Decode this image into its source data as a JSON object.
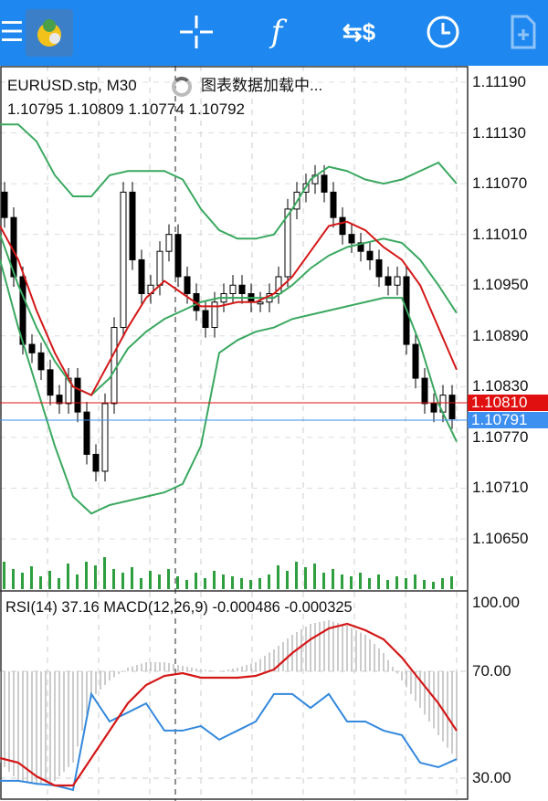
{
  "toolbar": {
    "items": [
      "menu-icon",
      "app-logo",
      "crosshair-icon",
      "indicators-icon",
      "trade-icon",
      "timeframe-clock-icon",
      "new-order-icon"
    ],
    "color": "#1e88f0"
  },
  "chart": {
    "symbol_label": "EURUSD.stp, M30",
    "loading_text": "图表数据加载中...",
    "ohlc_text": "1.10795 1.10809 1.10774 1.10792",
    "price_axis": [
      "1.11190",
      "1.11130",
      "1.11070",
      "1.11010",
      "1.10950",
      "1.10890",
      "1.10830",
      "1.10770",
      "1.10710",
      "1.10650"
    ],
    "bid_tag": "1.10810",
    "ask_tag": "1.10791",
    "bid_color": "#e01010",
    "ask_color": "#3d8ff0",
    "closes": [
      1.1103,
      1.1096,
      1.1088,
      1.1087,
      1.1085,
      1.1082,
      1.1081,
      1.1084,
      1.108,
      1.1075,
      1.1073,
      1.1081,
      1.109,
      1.1106,
      1.1098,
      1.1094,
      1.1095,
      1.1099,
      1.1101,
      1.1096,
      1.1094,
      1.1092,
      1.109,
      1.1093,
      1.1094,
      1.1095,
      1.1094,
      1.1093,
      1.1093,
      1.1094,
      1.1096,
      1.1104,
      1.1106,
      1.1107,
      1.1108,
      1.1106,
      1.1103,
      1.1101,
      1.11,
      1.1099,
      1.1098,
      1.1096,
      1.1095,
      1.1096,
      1.1088,
      1.1084,
      1.1081,
      1.108,
      1.1082,
      1.10792
    ],
    "ma_red": [
      1.1102,
      1.1098,
      1.1092,
      1.1087,
      1.1083,
      1.1082,
      1.1086,
      1.109,
      1.10935,
      1.10955,
      1.1094,
      1.10925,
      1.10925,
      1.1093,
      1.1093,
      1.1094,
      1.1096,
      1.1099,
      1.1102,
      1.11025,
      1.11015,
      1.10995,
      1.1098,
      1.1095,
      1.109,
      1.1085
    ],
    "bb_middle": [
      1.1101,
      1.1095,
      1.109,
      1.1086,
      1.1083,
      1.1082,
      1.1084,
      1.10875,
      1.10895,
      1.1091,
      1.1092,
      1.1093,
      1.10935,
      1.10935,
      1.10935,
      1.10935,
      1.1095,
      1.1097,
      1.10985,
      1.10995,
      1.11,
      1.11005,
      1.11,
      1.1098,
      1.1095,
      1.10917
    ],
    "bb_upper": [
      1.1114,
      1.1114,
      1.1112,
      1.1108,
      1.11055,
      1.11055,
      1.1108,
      1.11085,
      1.11085,
      1.11085,
      1.11075,
      1.1104,
      1.11015,
      1.11005,
      1.11005,
      1.1101,
      1.1104,
      1.11075,
      1.1109,
      1.11085,
      1.11075,
      1.1107,
      1.11075,
      1.11085,
      1.11095,
      1.1107
    ],
    "bb_lower": [
      1.1098,
      1.109,
      1.1083,
      1.1076,
      1.107,
      1.1068,
      1.1069,
      1.10695,
      1.107,
      1.10705,
      1.10715,
      1.1076,
      1.1087,
      1.10885,
      1.10895,
      1.109,
      1.1091,
      1.10915,
      1.1092,
      1.10925,
      1.1093,
      1.10935,
      1.10935,
      1.1088,
      1.1081,
      1.10765
    ],
    "volumes": [
      30,
      22,
      18,
      25,
      14,
      20,
      12,
      28,
      16,
      30,
      26,
      35,
      22,
      18,
      24,
      12,
      20,
      16,
      22,
      14,
      10,
      18,
      12,
      20,
      16,
      14,
      12,
      10,
      12,
      16,
      26,
      20,
      30,
      24,
      28,
      18,
      22,
      16,
      14,
      18,
      12,
      16,
      10,
      14,
      12,
      16,
      10,
      8,
      12,
      14
    ]
  },
  "oscillator": {
    "label": "RSI(14) 37.16 MACD(12,26,9) -0.000486 -0.000325",
    "levels": [
      "100.00",
      "70.00",
      "30.00"
    ],
    "rsi": [
      29.0,
      29.0,
      27.9,
      27.3,
      25.6,
      61.5,
      51.2,
      54.6,
      58.0,
      47.8,
      47.8,
      49.5,
      44.4,
      47.8,
      51.2,
      61.5,
      61.5,
      56.3,
      61.5,
      51.2,
      51.2,
      47.8,
      46.1,
      35.8,
      34.1,
      37.16
    ],
    "macd_signal": [
      -0.000475,
      -0.0005,
      -0.000575,
      -0.000625,
      -0.000625,
      -0.000475,
      -0.000325,
      -0.000175,
      -7.5e-05,
      -2.5e-05,
      -1e-05,
      -3.5e-05,
      -3.5e-05,
      -3.5e-05,
      -2.5e-05,
      1e-05,
      0.0001,
      0.000175,
      0.000235,
      0.00026,
      0.000225,
      0.000175,
      7.5e-05,
      -5e-05,
      -0.000175,
      -0.000325
    ],
    "macd_main": [
      -0.0005,
      -0.0006,
      -0.00062,
      -0.0006,
      -0.0005,
      -0.00015,
      -5e-05,
      2e-05,
      5e-05,
      5e-05,
      3e-05,
      1e-05,
      0,
      2e-05,
      5e-05,
      0.00012,
      0.0002,
      0.00026,
      0.00028,
      0.00025,
      0.0002,
      0.0001,
      -5e-05,
      -0.0002,
      -0.00035,
      -0.000486
    ]
  }
}
